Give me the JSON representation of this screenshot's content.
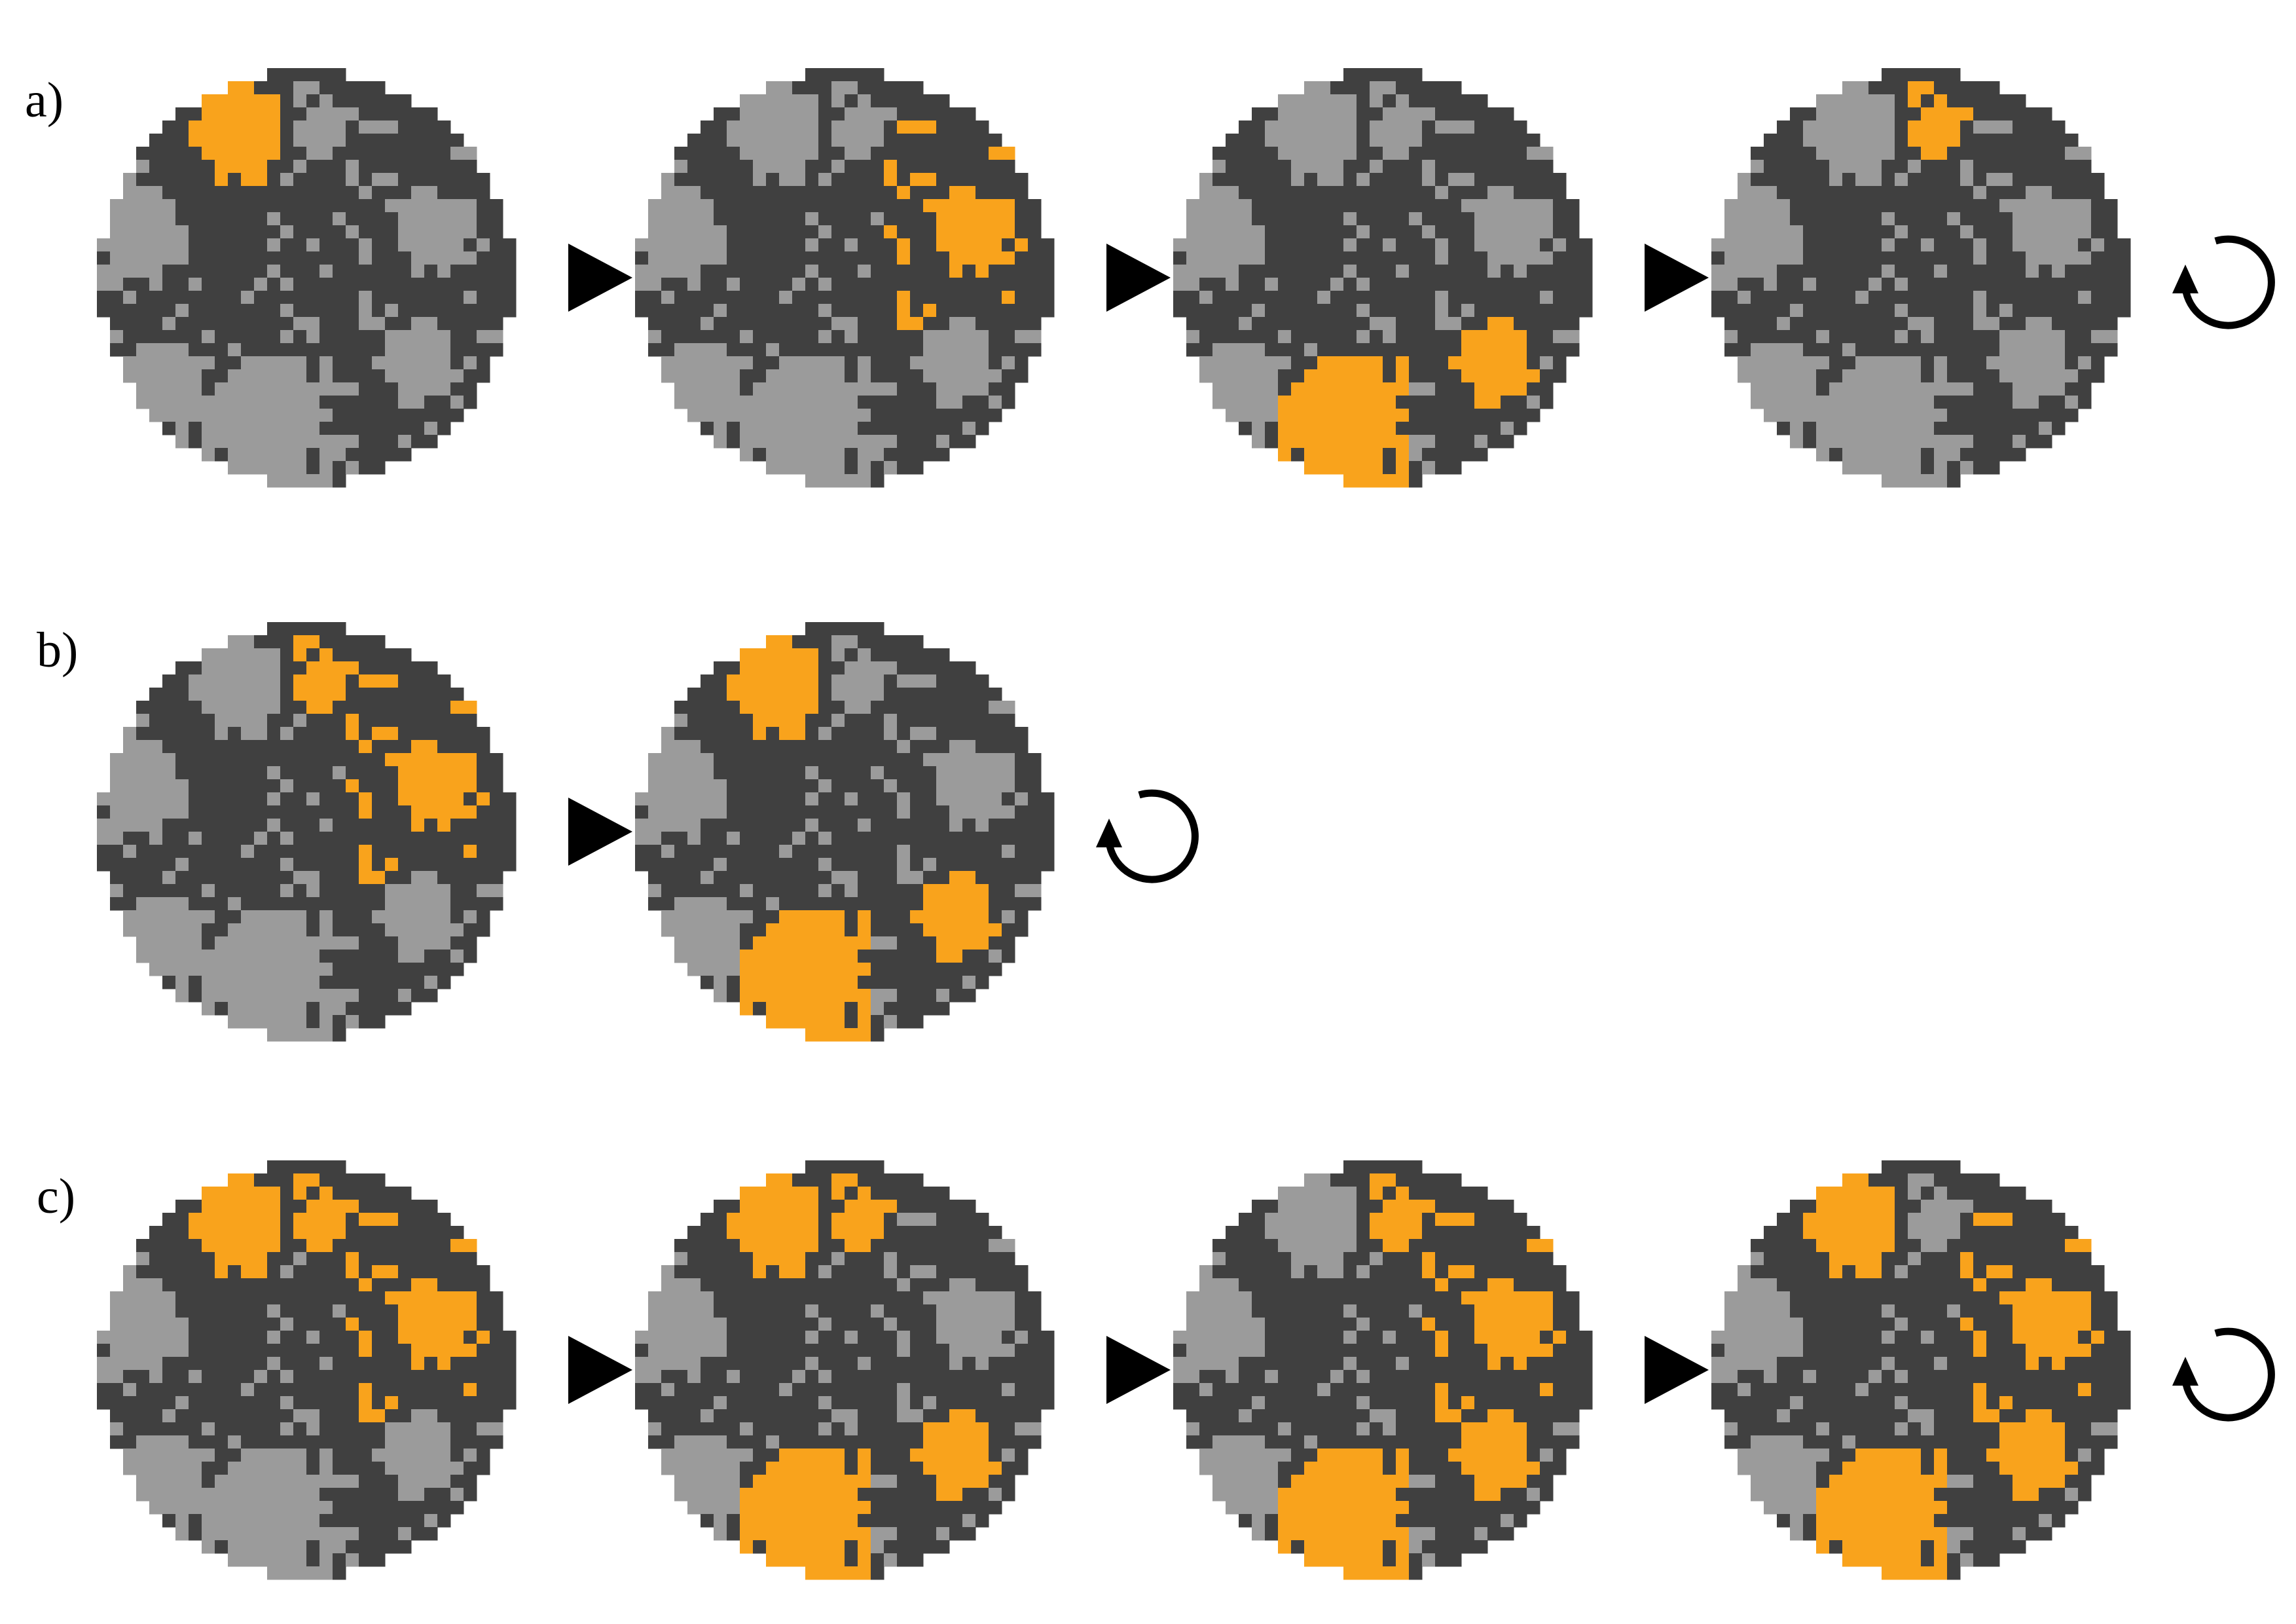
{
  "colors": {
    "background": "#ffffff",
    "dark": "#404040",
    "light": "#9b9b9b",
    "highlight": "#f9a31c",
    "arrow": "#000000",
    "cycle_icon": "#000000"
  },
  "rows": [
    {
      "label": "a)",
      "panels": [
        {
          "highlighted_regions": [
            "A"
          ]
        },
        {
          "highlighted_regions": [
            "F"
          ]
        },
        {
          "highlighted_regions": [
            "G",
            "D"
          ]
        },
        {
          "highlighted_regions": [
            "E"
          ]
        }
      ],
      "arrow_icon": "right-triangle-arrow",
      "end_icon": "cycle-icon"
    },
    {
      "label": "b)",
      "panels": [
        {
          "highlighted_regions": [
            "F",
            "E"
          ]
        },
        {
          "highlighted_regions": [
            "A",
            "G",
            "D"
          ]
        }
      ],
      "arrow_icon": "right-triangle-arrow",
      "end_icon": "cycle-icon"
    },
    {
      "label": "c)",
      "panels": [
        {
          "highlighted_regions": [
            "A",
            "F",
            "E"
          ]
        },
        {
          "highlighted_regions": [
            "A",
            "G",
            "D",
            "E"
          ]
        },
        {
          "highlighted_regions": [
            "G",
            "D",
            "E",
            "F"
          ]
        },
        {
          "highlighted_regions": [
            "A",
            "F",
            "G",
            "D"
          ]
        }
      ],
      "arrow_icon": "right-triangle-arrow",
      "end_icon": "cycle-icon"
    }
  ]
}
